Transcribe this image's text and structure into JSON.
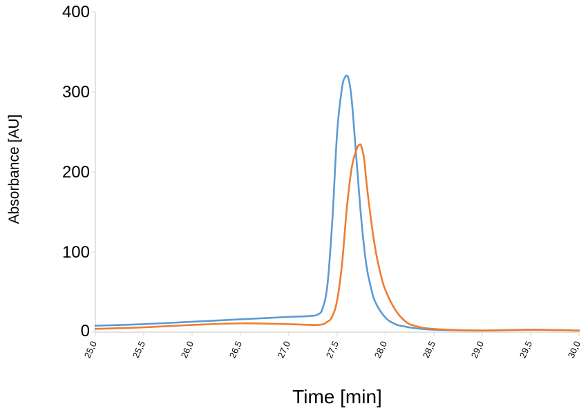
{
  "chart_data": {
    "type": "line",
    "title": "",
    "xlabel": "Time [min]",
    "ylabel": "Absorbance [AU]",
    "xlim": [
      25.0,
      30.0
    ],
    "ylim": [
      0,
      400
    ],
    "x_ticks": [
      "25,0",
      "25,5",
      "26,0",
      "26,5",
      "27,0",
      "27,5",
      "28,0",
      "28,5",
      "29,0",
      "29,5",
      "30,0"
    ],
    "x_tick_values": [
      25.0,
      25.5,
      26.0,
      26.5,
      27.0,
      27.5,
      28.0,
      28.5,
      29.0,
      29.5,
      30.0
    ],
    "y_ticks": [
      "0",
      "100",
      "200",
      "300",
      "400"
    ],
    "y_tick_values": [
      0,
      100,
      200,
      300,
      400
    ],
    "grid": false,
    "legend": "none",
    "series": [
      {
        "color": "#5b9bd5",
        "x": [
          25.0,
          25.5,
          26.0,
          26.5,
          27.0,
          27.2,
          27.3,
          27.35,
          27.4,
          27.45,
          27.5,
          27.55,
          27.58,
          27.6,
          27.62,
          27.65,
          27.7,
          27.75,
          27.8,
          27.85,
          27.9,
          28.0,
          28.1,
          28.2,
          28.3,
          28.5,
          29.0,
          29.5,
          30.0
        ],
        "y": [
          8,
          10,
          13,
          16,
          19,
          20,
          22,
          30,
          60,
          140,
          250,
          305,
          318,
          320,
          315,
          290,
          215,
          140,
          85,
          55,
          36,
          18,
          10,
          7,
          5,
          3,
          2,
          3,
          2
        ]
      },
      {
        "color": "#ed7d31",
        "x": [
          25.0,
          25.5,
          26.0,
          26.5,
          27.0,
          27.3,
          27.4,
          27.45,
          27.5,
          27.55,
          27.6,
          27.65,
          27.7,
          27.73,
          27.75,
          27.78,
          27.8,
          27.85,
          27.9,
          27.95,
          28.0,
          28.1,
          28.2,
          28.3,
          28.5,
          29.0,
          29.5,
          30.0
        ],
        "y": [
          4,
          6,
          9,
          11,
          10,
          9,
          13,
          20,
          40,
          85,
          155,
          205,
          228,
          234,
          232,
          215,
          190,
          140,
          100,
          72,
          52,
          28,
          14,
          8,
          4,
          2,
          3,
          2
        ]
      }
    ]
  }
}
